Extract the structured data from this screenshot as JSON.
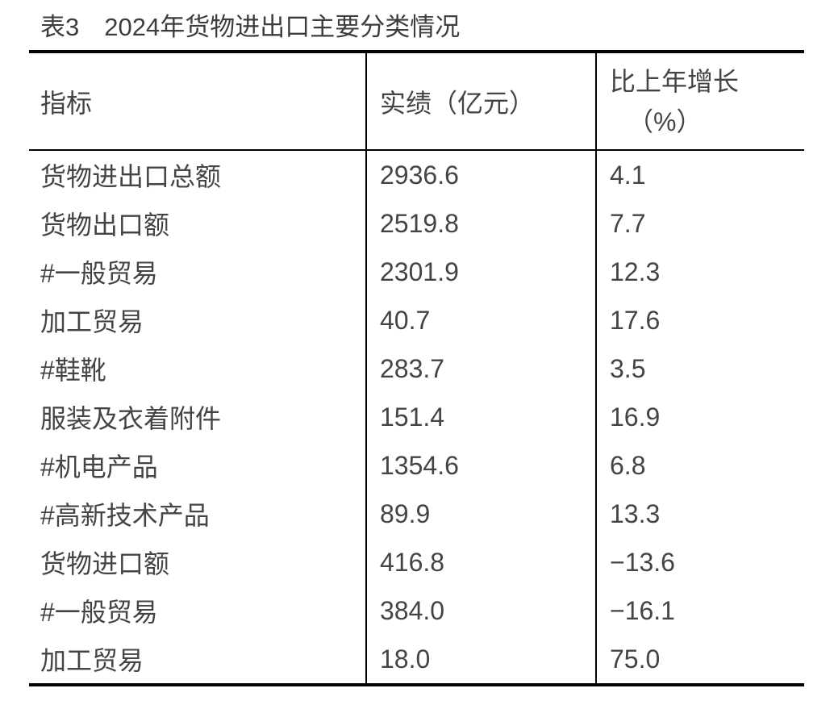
{
  "page": {
    "title": "表3　2024年货物进出口主要分类情况"
  },
  "table": {
    "headers": {
      "indicator": "指标",
      "value": "实绩（亿元）",
      "growth_line1": "比上年增长",
      "growth_line2": "（%）"
    },
    "rows": [
      {
        "indicator": "货物进出口总额",
        "value": "2936.6",
        "growth": "4.1"
      },
      {
        "indicator": "货物出口额",
        "value": "2519.8",
        "growth": "7.7"
      },
      {
        "indicator": "#一般贸易",
        "value": "2301.9",
        "growth": "12.3"
      },
      {
        "indicator": "加工贸易",
        "value": "40.7",
        "growth": "17.6"
      },
      {
        "indicator": "#鞋靴",
        "value": "283.7",
        "growth": "3.5"
      },
      {
        "indicator": "服装及衣着附件",
        "value": "151.4",
        "growth": "16.9"
      },
      {
        "indicator": "#机电产品",
        "value": "1354.6",
        "growth": "6.8"
      },
      {
        "indicator": "#高新技术产品",
        "value": "89.9",
        "growth": "13.3"
      },
      {
        "indicator": "货物进口额",
        "value": "416.8",
        "growth": "−13.6"
      },
      {
        "indicator": "#一般贸易",
        "value": "384.0",
        "growth": "−16.1"
      },
      {
        "indicator": "加工贸易",
        "value": "18.0",
        "growth": "75.0"
      }
    ]
  }
}
